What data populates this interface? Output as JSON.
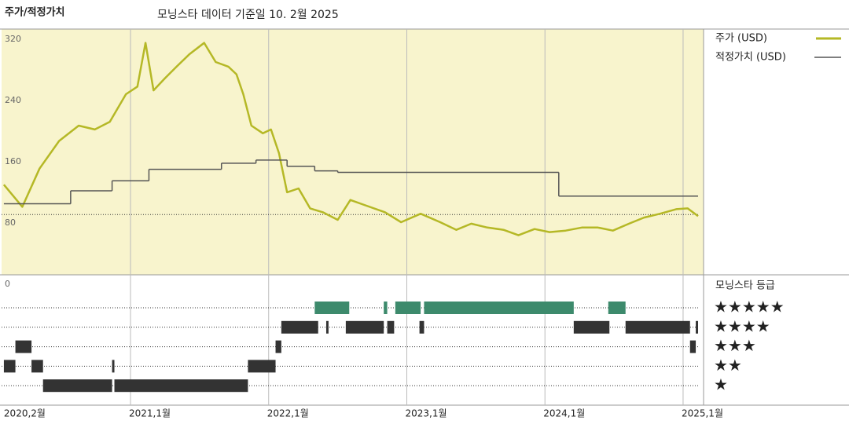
{
  "chart_data": {
    "type": "line",
    "title": "주가/적정가치",
    "subtitle": "모닝스타 데이터 기준일 10. 2월 2025",
    "xlim": [
      0.8,
      61.3
    ],
    "xticks": [
      {
        "value": 1,
        "label": "2020,2월"
      },
      {
        "value": 12,
        "label": "2021,1월"
      },
      {
        "value": 24,
        "label": "2022,1월"
      },
      {
        "value": 36,
        "label": "2023,1월"
      },
      {
        "value": 48,
        "label": "2024,1월"
      },
      {
        "value": 60,
        "label": "2025,1월"
      }
    ],
    "ylim": [
      0,
      330
    ],
    "yticks": [
      0,
      80,
      160,
      240,
      320
    ],
    "series": [
      {
        "name": "주가 (USD)",
        "color": "#b5b826",
        "x": [
          1.0,
          2.6,
          4.1,
          5.8,
          7.5,
          8.9,
          10.2,
          11.6,
          12.6,
          13.3,
          14.0,
          15.0,
          16.0,
          17.1,
          18.4,
          19.4,
          20.5,
          21.2,
          21.8,
          22.5,
          23.5,
          24.2,
          24.9,
          25.6,
          26.6,
          27.6,
          28.7,
          30.0,
          31.1,
          32.4,
          34.1,
          35.5,
          37.2,
          38.9,
          40.3,
          41.6,
          43.0,
          44.4,
          45.7,
          47.1,
          48.4,
          49.8,
          51.2,
          52.6,
          53.9,
          55.3,
          56.6,
          58.0,
          59.4,
          60.4,
          61.3
        ],
        "values": [
          130,
          101,
          151,
          187,
          207,
          202,
          212,
          248,
          258,
          315,
          253,
          269,
          284,
          300,
          315,
          290,
          284,
          274,
          248,
          207,
          197,
          202,
          171,
          120,
          125,
          99,
          94,
          84,
          110,
          103,
          94,
          81,
          92,
          81,
          71,
          79,
          74,
          71,
          64,
          72,
          68,
          70,
          74,
          74,
          70,
          79,
          87,
          92,
          98,
          99,
          89
        ]
      },
      {
        "name": "적정가치 (USD)",
        "color": "#555555",
        "step": "after",
        "x": [
          1.0,
          6.8,
          10.4,
          13.6,
          19.9,
          22.9,
          25.6,
          28.0,
          30.0,
          49.2
        ],
        "values": [
          105,
          122,
          135,
          150,
          158,
          162,
          154,
          148,
          146,
          115
        ]
      }
    ],
    "reference_line": {
      "value": 91,
      "style": "dotted"
    },
    "rating_panel": {
      "title": "모닝스타 등급",
      "rows": [
        {
          "label": "★★★★★",
          "color": "#3d8a6c",
          "periods": [
            [
              28.0,
              31.0
            ],
            [
              34.0,
              34.3
            ],
            [
              35.0,
              37.2
            ],
            [
              37.5,
              50.5
            ],
            [
              53.5,
              55.0
            ]
          ]
        },
        {
          "label": "★★★★",
          "color": "#333333",
          "periods": [
            [
              25.1,
              28.3
            ],
            [
              29.0,
              29.2
            ],
            [
              30.7,
              34.0
            ],
            [
              34.3,
              34.9
            ],
            [
              37.1,
              37.5
            ],
            [
              50.5,
              53.6
            ],
            [
              55.0,
              60.6
            ],
            [
              61.1,
              61.3
            ]
          ]
        },
        {
          "label": "★★★",
          "color": "#333333",
          "periods": [
            [
              2.0,
              3.4
            ],
            [
              24.6,
              25.1
            ],
            [
              60.6,
              61.1
            ]
          ]
        },
        {
          "label": "★★",
          "color": "#333333",
          "periods": [
            [
              1.0,
              2.0
            ],
            [
              3.4,
              4.4
            ],
            [
              10.4,
              10.6
            ],
            [
              22.2,
              24.6
            ]
          ]
        },
        {
          "label": "★",
          "color": "#333333",
          "periods": [
            [
              4.4,
              10.4
            ],
            [
              10.6,
              22.2
            ]
          ]
        }
      ]
    }
  }
}
